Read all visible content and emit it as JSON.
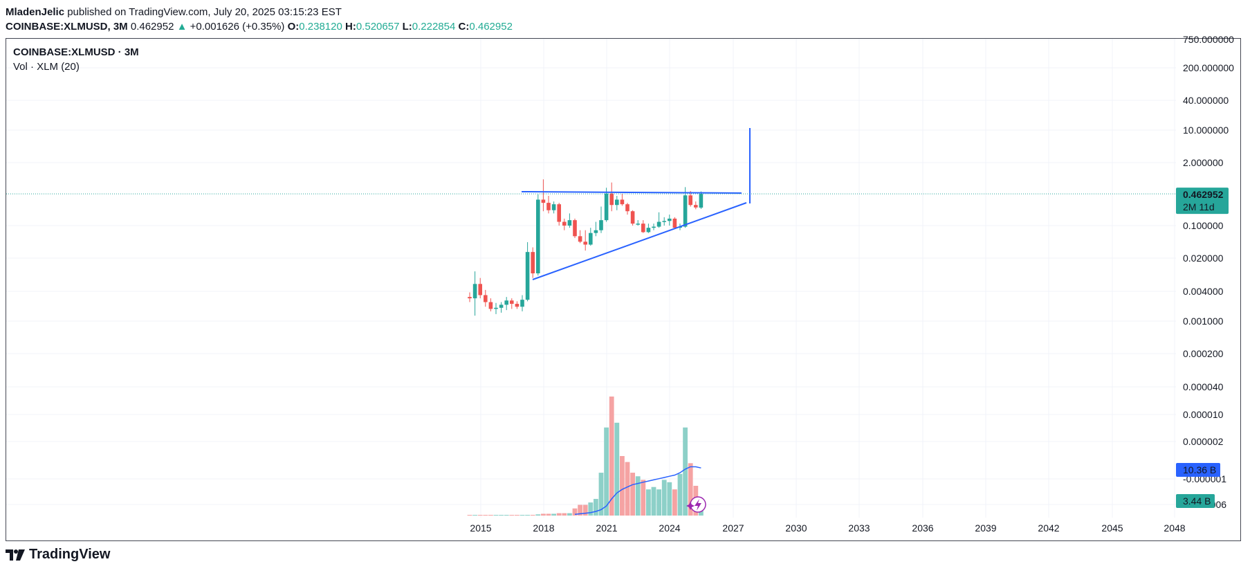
{
  "header": {
    "author": "MladenJelic",
    "published": " published on TradingView.com, July 20, 2025 03:15:23 EST",
    "symbol": "COINBASE:XLMUSD, 3M",
    "last": "0.462952",
    "change_arrow": "▲",
    "change": "+0.001626 (+0.35%)",
    "o_label": "O:",
    "o_value": "0.238120",
    "h_label": "H:",
    "h_value": "0.520657",
    "l_label": "L:",
    "l_value": "0.222854",
    "c_label": "C:",
    "c_value": "0.462952"
  },
  "legend": {
    "title": "COINBASE:XLMUSD · 3M",
    "volume": "Vol · XLM (20)"
  },
  "footer": {
    "brand": "TradingView"
  },
  "colors": {
    "up": "#26a69a",
    "down": "#ef5350",
    "up_vol": "#8dd0c8",
    "down_vol": "#f5a3a3",
    "drawing": "#2962ff",
    "ma": "#2962ff"
  },
  "chart_data": {
    "type": "candlestick",
    "scale": "log",
    "x_axis": {
      "ticks": [
        "2015",
        "2018",
        "2021",
        "2024",
        "2027",
        "2030",
        "2033",
        "2036",
        "2039",
        "2042",
        "2045",
        "2048"
      ]
    },
    "y_axis": {
      "ticks": [
        "750.000000",
        "200.000000",
        "40.000000",
        "10.000000",
        "2.000000",
        "0.100000",
        "0.020000",
        "0.004000",
        "0.001000",
        "0.000200",
        "0.000040",
        "0.000010",
        "0.000002",
        "-0.000001",
        "-0.000006"
      ],
      "price_label": "0.462952",
      "price_countdown": "2M 11d",
      "volume_ma_label": "10.36 B",
      "volume_label": "3.44 B"
    },
    "candles": [
      {
        "t": "2014-Q3",
        "o": 0.0032,
        "h": 0.004,
        "l": 0.0025,
        "c": 0.003
      },
      {
        "t": "2014-Q4",
        "o": 0.003,
        "h": 0.011,
        "l": 0.0013,
        "c": 0.006
      },
      {
        "t": "2015-Q1",
        "o": 0.006,
        "h": 0.008,
        "l": 0.003,
        "c": 0.0035
      },
      {
        "t": "2015-Q2",
        "o": 0.0035,
        "h": 0.0045,
        "l": 0.002,
        "c": 0.0025
      },
      {
        "t": "2015-Q3",
        "o": 0.0025,
        "h": 0.003,
        "l": 0.0016,
        "c": 0.0018
      },
      {
        "t": "2015-Q4",
        "o": 0.0018,
        "h": 0.0024,
        "l": 0.0014,
        "c": 0.0019
      },
      {
        "t": "2016-Q1",
        "o": 0.0019,
        "h": 0.0025,
        "l": 0.0015,
        "c": 0.0022
      },
      {
        "t": "2016-Q2",
        "o": 0.0022,
        "h": 0.0032,
        "l": 0.0017,
        "c": 0.0027
      },
      {
        "t": "2016-Q3",
        "o": 0.0027,
        "h": 0.003,
        "l": 0.0018,
        "c": 0.0023
      },
      {
        "t": "2016-Q4",
        "o": 0.0023,
        "h": 0.0026,
        "l": 0.0018,
        "c": 0.002
      },
      {
        "t": "2017-Q1",
        "o": 0.002,
        "h": 0.0035,
        "l": 0.0016,
        "c": 0.0028
      },
      {
        "t": "2017-Q2",
        "o": 0.0028,
        "h": 0.045,
        "l": 0.0026,
        "c": 0.028
      },
      {
        "t": "2017-Q3",
        "o": 0.028,
        "h": 0.035,
        "l": 0.008,
        "c": 0.01
      },
      {
        "t": "2017-Q4",
        "o": 0.01,
        "h": 0.45,
        "l": 0.009,
        "c": 0.35
      },
      {
        "t": "2018-Q1",
        "o": 0.35,
        "h": 0.93,
        "l": 0.2,
        "c": 0.3
      },
      {
        "t": "2018-Q2",
        "o": 0.3,
        "h": 0.42,
        "l": 0.18,
        "c": 0.21
      },
      {
        "t": "2018-Q3",
        "o": 0.21,
        "h": 0.32,
        "l": 0.18,
        "c": 0.28
      },
      {
        "t": "2018-Q4",
        "o": 0.28,
        "h": 0.3,
        "l": 0.1,
        "c": 0.12
      },
      {
        "t": "2019-Q1",
        "o": 0.12,
        "h": 0.14,
        "l": 0.08,
        "c": 0.1
      },
      {
        "t": "2019-Q2",
        "o": 0.1,
        "h": 0.18,
        "l": 0.09,
        "c": 0.13
      },
      {
        "t": "2019-Q3",
        "o": 0.13,
        "h": 0.14,
        "l": 0.055,
        "c": 0.06
      },
      {
        "t": "2019-Q4",
        "o": 0.06,
        "h": 0.08,
        "l": 0.043,
        "c": 0.046
      },
      {
        "t": "2020-Q1",
        "o": 0.046,
        "h": 0.08,
        "l": 0.03,
        "c": 0.04
      },
      {
        "t": "2020-Q2",
        "o": 0.04,
        "h": 0.09,
        "l": 0.038,
        "c": 0.07
      },
      {
        "t": "2020-Q3",
        "o": 0.07,
        "h": 0.12,
        "l": 0.06,
        "c": 0.08
      },
      {
        "t": "2020-Q4",
        "o": 0.08,
        "h": 0.25,
        "l": 0.07,
        "c": 0.13
      },
      {
        "t": "2021-Q1",
        "o": 0.13,
        "h": 0.62,
        "l": 0.12,
        "c": 0.47
      },
      {
        "t": "2021-Q2",
        "o": 0.47,
        "h": 0.8,
        "l": 0.2,
        "c": 0.27
      },
      {
        "t": "2021-Q3",
        "o": 0.27,
        "h": 0.42,
        "l": 0.21,
        "c": 0.35
      },
      {
        "t": "2021-Q4",
        "o": 0.35,
        "h": 0.46,
        "l": 0.26,
        "c": 0.28
      },
      {
        "t": "2022-Q1",
        "o": 0.28,
        "h": 0.3,
        "l": 0.17,
        "c": 0.2
      },
      {
        "t": "2022-Q2",
        "o": 0.2,
        "h": 0.21,
        "l": 0.1,
        "c": 0.11
      },
      {
        "t": "2022-Q3",
        "o": 0.11,
        "h": 0.13,
        "l": 0.1,
        "c": 0.11
      },
      {
        "t": "2022-Q4",
        "o": 0.11,
        "h": 0.13,
        "l": 0.07,
        "c": 0.073
      },
      {
        "t": "2023-Q1",
        "o": 0.073,
        "h": 0.11,
        "l": 0.07,
        "c": 0.09
      },
      {
        "t": "2023-Q2",
        "o": 0.09,
        "h": 0.11,
        "l": 0.08,
        "c": 0.095
      },
      {
        "t": "2023-Q3",
        "o": 0.095,
        "h": 0.19,
        "l": 0.09,
        "c": 0.12
      },
      {
        "t": "2023-Q4",
        "o": 0.12,
        "h": 0.15,
        "l": 0.1,
        "c": 0.125
      },
      {
        "t": "2024-Q1",
        "o": 0.125,
        "h": 0.17,
        "l": 0.1,
        "c": 0.14
      },
      {
        "t": "2024-Q2",
        "o": 0.14,
        "h": 0.15,
        "l": 0.085,
        "c": 0.09
      },
      {
        "t": "2024-Q3",
        "o": 0.09,
        "h": 0.11,
        "l": 0.08,
        "c": 0.095
      },
      {
        "t": "2024-Q4",
        "o": 0.095,
        "h": 0.64,
        "l": 0.09,
        "c": 0.43
      },
      {
        "t": "2025-Q1",
        "o": 0.43,
        "h": 0.53,
        "l": 0.25,
        "c": 0.27
      },
      {
        "t": "2025-Q2",
        "o": 0.27,
        "h": 0.32,
        "l": 0.22,
        "c": 0.24
      },
      {
        "t": "2025-Q3",
        "o": 0.2381,
        "h": 0.5207,
        "l": 0.2229,
        "c": 0.463
      }
    ],
    "volume_relative": [
      0.002,
      0.003,
      0.003,
      0.003,
      0.003,
      0.003,
      0.003,
      0.003,
      0.003,
      0.003,
      0.004,
      0.006,
      0.006,
      0.01,
      0.015,
      0.015,
      0.015,
      0.02,
      0.02,
      0.02,
      0.06,
      0.09,
      0.09,
      0.11,
      0.14,
      0.36,
      0.74,
      1.0,
      0.78,
      0.5,
      0.45,
      0.36,
      0.33,
      0.3,
      0.22,
      0.24,
      0.22,
      0.3,
      0.28,
      0.22,
      0.35,
      0.74,
      0.44,
      0.25,
      0.06
    ],
    "volume_ma_relative": [
      null,
      null,
      null,
      null,
      null,
      null,
      null,
      null,
      null,
      null,
      null,
      null,
      null,
      null,
      null,
      null,
      null,
      null,
      null,
      null,
      0.01,
      0.015,
      0.02,
      0.025,
      0.035,
      0.05,
      0.08,
      0.14,
      0.19,
      0.22,
      0.24,
      0.26,
      0.27,
      0.28,
      0.29,
      0.3,
      0.31,
      0.32,
      0.33,
      0.34,
      0.36,
      0.39,
      0.41,
      0.41,
      0.4
    ]
  }
}
